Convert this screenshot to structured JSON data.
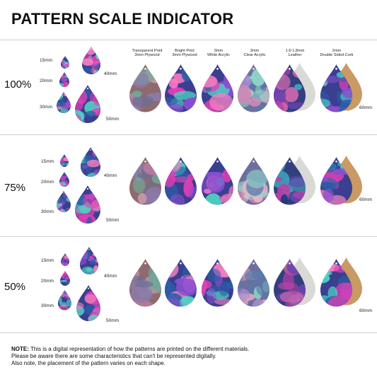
{
  "title": "PATTERN SCALE INDICATOR",
  "materials": [
    {
      "line1": "Transparent Print",
      "line2": "3mm Plywood"
    },
    {
      "line1": "Bright Print",
      "line2": "3mm Plywood"
    },
    {
      "line1": "3mm",
      "line2": "White Acrylic"
    },
    {
      "line1": "3mm",
      "line2": "Clear Acrylic"
    },
    {
      "line1": "1.6-1.8mm",
      "line2": "Leather"
    },
    {
      "line1": "2mm",
      "line2": "Double Sided Cork"
    }
  ],
  "sections": [
    {
      "scale": "100%",
      "sizes": {
        "s15": "15mm",
        "s20": "20mm",
        "s30": "30mm",
        "s40": "40mm",
        "s50": "50mm",
        "s60": "60mm"
      }
    },
    {
      "scale": "75%",
      "sizes": {
        "s15": "15mm",
        "s20": "20mm",
        "s30": "30mm",
        "s40": "40mm",
        "s50": "50mm",
        "s60": "60mm"
      }
    },
    {
      "scale": "50%",
      "sizes": {
        "s15": "15mm",
        "s20": "20mm",
        "s30": "30mm",
        "s40": "40mm",
        "s50": "50mm",
        "s60": "60mm"
      }
    }
  ],
  "note": {
    "label": "NOTE:",
    "line1": " This is a digital representation of how the patterns are printed on the different materials.",
    "line2": "Please be aware there are some characteristics that can't be represented digitally.",
    "line3": "Also note, the placement of the pattern varies on each shape."
  }
}
